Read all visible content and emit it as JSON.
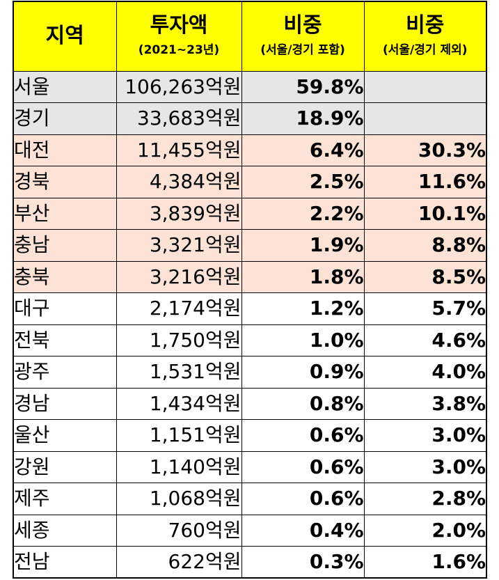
{
  "header": {
    "region": "지역",
    "investment": "투자액",
    "investment_sub": "(2021~23년)",
    "share_incl": "비중",
    "share_incl_sub": "(서울/경기 포함)",
    "share_excl": "비중",
    "share_excl_sub": "(서울/경기 제외)"
  },
  "rows": [
    {
      "region": "서울",
      "amount": "106,263억원",
      "share_incl": "59.8%",
      "share_excl": "",
      "group": "capital"
    },
    {
      "region": "경기",
      "amount": "33,683억원",
      "share_incl": "18.9%",
      "share_excl": "",
      "group": "capital"
    },
    {
      "region": "대전",
      "amount": "11,455억원",
      "share_incl": "6.4%",
      "share_excl": "30.3%",
      "group": "top"
    },
    {
      "region": "경북",
      "amount": "4,384억원",
      "share_incl": "2.5%",
      "share_excl": "11.6%",
      "group": "top"
    },
    {
      "region": "부산",
      "amount": "3,839억원",
      "share_incl": "2.2%",
      "share_excl": "10.1%",
      "group": "top"
    },
    {
      "region": "충남",
      "amount": "3,321억원",
      "share_incl": "1.9%",
      "share_excl": "8.8%",
      "group": "top"
    },
    {
      "region": "충북",
      "amount": "3,216억원",
      "share_incl": "1.8%",
      "share_excl": "8.5%",
      "group": "top"
    },
    {
      "region": "대구",
      "amount": "2,174억원",
      "share_incl": "1.2%",
      "share_excl": "5.7%",
      "group": "rest"
    },
    {
      "region": "전북",
      "amount": "1,750억원",
      "share_incl": "1.0%",
      "share_excl": "4.6%",
      "group": "rest"
    },
    {
      "region": "광주",
      "amount": "1,531억원",
      "share_incl": "0.9%",
      "share_excl": "4.0%",
      "group": "rest"
    },
    {
      "region": "경남",
      "amount": "1,434억원",
      "share_incl": "0.8%",
      "share_excl": "3.8%",
      "group": "rest"
    },
    {
      "region": "울산",
      "amount": "1,151억원",
      "share_incl": "0.6%",
      "share_excl": "3.0%",
      "group": "rest"
    },
    {
      "region": "강원",
      "amount": "1,140억원",
      "share_incl": "0.6%",
      "share_excl": "3.0%",
      "group": "rest"
    },
    {
      "region": "제주",
      "amount": "1,068억원",
      "share_incl": "0.6%",
      "share_excl": "2.8%",
      "group": "rest"
    },
    {
      "region": "세종",
      "amount": "760억원",
      "share_incl": "0.4%",
      "share_excl": "2.0%",
      "group": "rest"
    },
    {
      "region": "전남",
      "amount": "622억원",
      "share_incl": "0.3%",
      "share_excl": "1.6%",
      "group": "rest"
    }
  ],
  "colors": {
    "header_bg": "#ffff00",
    "capital_bg": "#e6e6e6",
    "top_bg": "#fde2d6",
    "rest_bg": "#ffffff"
  }
}
